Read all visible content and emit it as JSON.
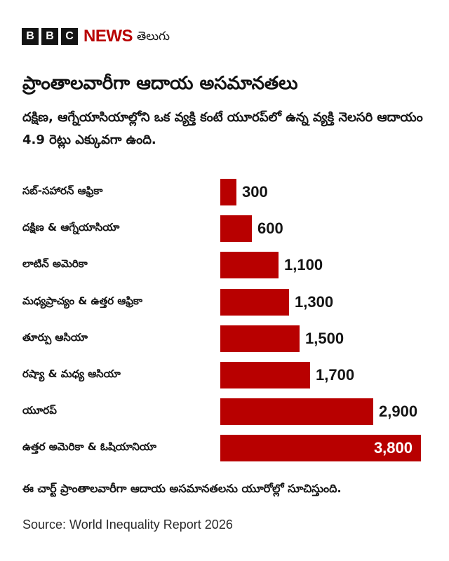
{
  "header": {
    "brand_letters": [
      "B",
      "B",
      "C"
    ],
    "brand_news": "NEWS",
    "language": "తెలుగు"
  },
  "title": "ప్రాంతాలవారీగా ఆదాయ అసమానతలు",
  "subtitle": "దక్షిణ, ఆగ్నేయాసియాల్లోని ఒక వ్యక్తి కంటే యూరప్‌లో ఉన్న వ్యక్తి నెలసరి ఆదాయం 4.9 రెట్లు ఎక్కువగా ఉంది.",
  "note": "ఈ చార్ట్ ప్రాంతాలవారీగా ఆదాయ అసమానతలను యూరోల్లో సూచిస్తుంది.",
  "source": "Source: World Inequality Report 2026",
  "colors": {
    "bar": "#b80000",
    "text": "#141414",
    "brand_red": "#b80000"
  },
  "chart_data": {
    "type": "bar",
    "orientation": "horizontal",
    "title": "ప్రాంతాలవారీగా ఆదాయ అసమానతలు",
    "subtitle": "దక్షిణ, ఆగ్నేయాసియాల్లోని ఒక వ్యక్తి కంటే యూరప్‌లో ఉన్న వ్యక్తి నెలసరి ఆదాయం 4.9 రెట్లు ఎక్కువగా ఉంది.",
    "xlabel": "",
    "ylabel": "",
    "unit": "EUR (monthly income)",
    "grid": false,
    "legend": null,
    "categories": [
      "సబ్-సహారన్ ఆఫ్రికా",
      "దక్షిణ & ఆగ్నేయాసియా",
      "లాటిన్ అమెరికా",
      "మధ్యప్రాచ్యం & ఉత్తర ఆఫ్రికా",
      "తూర్పు ఆసియా",
      "రష్యా & మధ్య ఆసియా",
      "యూరప్",
      "ఉత్తర అమెరికా & ఓషియానియా"
    ],
    "values": [
      300,
      600,
      1100,
      1300,
      1500,
      1700,
      2900,
      3800
    ],
    "value_labels": [
      "300",
      "600",
      "1,100",
      "1,300",
      "1,500",
      "1,700",
      "2,900",
      "3,800"
    ],
    "xlim": [
      0,
      3800
    ]
  }
}
